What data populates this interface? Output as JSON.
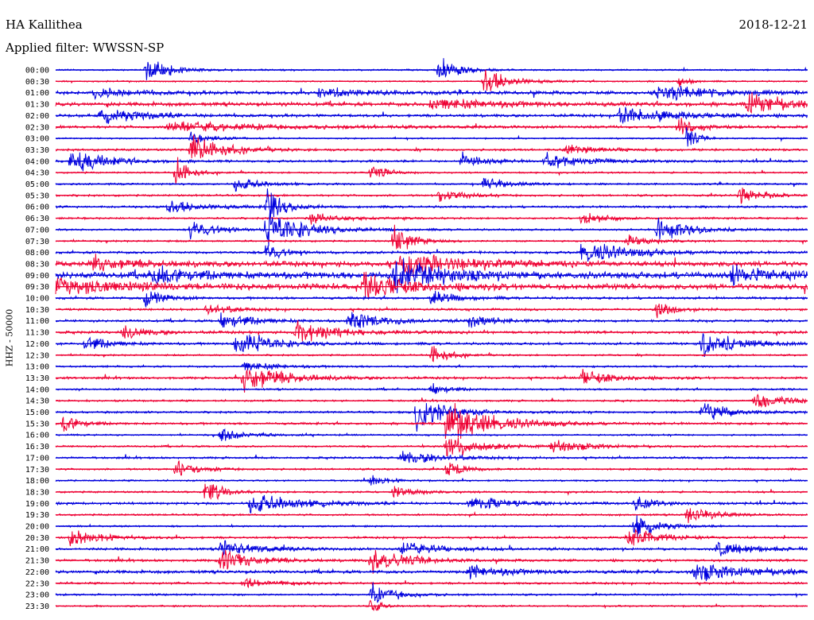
{
  "header": {
    "station": "HA Kallithea",
    "date": "2018-12-21",
    "filter_label": "Applied filter: WWSSN-SP"
  },
  "chart_data": {
    "type": "line",
    "title": "HA Kallithea",
    "subtitle": "Applied filter: WWSSN-SP",
    "date": "2018-12-21",
    "ylabel": "HHZ - 50000",
    "colors": [
      "#0000dd",
      "#ee0033"
    ],
    "grid": false,
    "rows": [
      {
        "label": "00:00",
        "noise": 0.8,
        "events": [
          {
            "pos": 0.12,
            "amp": 16,
            "dur": 0.03
          },
          {
            "pos": 0.51,
            "amp": 14,
            "dur": 0.025
          }
        ]
      },
      {
        "label": "00:30",
        "noise": 0.8,
        "events": [
          {
            "pos": 0.57,
            "amp": 18,
            "dur": 0.03
          },
          {
            "pos": 0.83,
            "amp": 10,
            "dur": 0.01
          }
        ]
      },
      {
        "label": "01:00",
        "noise": 1.8,
        "events": [
          {
            "pos": 0.05,
            "amp": 7,
            "dur": 0.05
          },
          {
            "pos": 0.35,
            "amp": 6,
            "dur": 0.06
          },
          {
            "pos": 0.8,
            "amp": 8,
            "dur": 0.08
          }
        ]
      },
      {
        "label": "01:30",
        "noise": 2.0,
        "events": [
          {
            "pos": 0.5,
            "amp": 7,
            "dur": 0.08
          },
          {
            "pos": 0.92,
            "amp": 16,
            "dur": 0.04
          }
        ]
      },
      {
        "label": "02:00",
        "noise": 1.5,
        "events": [
          {
            "pos": 0.06,
            "amp": 9,
            "dur": 0.06
          },
          {
            "pos": 0.75,
            "amp": 10,
            "dur": 0.07
          }
        ]
      },
      {
        "label": "02:30",
        "noise": 1.5,
        "events": [
          {
            "pos": 0.15,
            "amp": 6,
            "dur": 0.12
          },
          {
            "pos": 0.83,
            "amp": 12,
            "dur": 0.02
          }
        ]
      },
      {
        "label": "03:00",
        "noise": 0.8,
        "events": [
          {
            "pos": 0.18,
            "amp": 6,
            "dur": 0.03
          },
          {
            "pos": 0.84,
            "amp": 18,
            "dur": 0.01
          }
        ]
      },
      {
        "label": "03:30",
        "noise": 1.2,
        "events": [
          {
            "pos": 0.18,
            "amp": 17,
            "dur": 0.04
          },
          {
            "pos": 0.68,
            "amp": 5,
            "dur": 0.04
          }
        ]
      },
      {
        "label": "04:00",
        "noise": 1.2,
        "events": [
          {
            "pos": 0.02,
            "amp": 16,
            "dur": 0.04
          },
          {
            "pos": 0.54,
            "amp": 9,
            "dur": 0.03
          },
          {
            "pos": 0.65,
            "amp": 9,
            "dur": 0.05
          }
        ]
      },
      {
        "label": "04:30",
        "noise": 0.9,
        "events": [
          {
            "pos": 0.16,
            "amp": 20,
            "dur": 0.015
          },
          {
            "pos": 0.42,
            "amp": 10,
            "dur": 0.02
          }
        ]
      },
      {
        "label": "05:00",
        "noise": 1.0,
        "events": [
          {
            "pos": 0.24,
            "amp": 8,
            "dur": 0.03
          },
          {
            "pos": 0.57,
            "amp": 8,
            "dur": 0.03
          }
        ]
      },
      {
        "label": "05:30",
        "noise": 1.1,
        "events": [
          {
            "pos": 0.51,
            "amp": 7,
            "dur": 0.03
          },
          {
            "pos": 0.91,
            "amp": 9,
            "dur": 0.03
          }
        ]
      },
      {
        "label": "06:00",
        "noise": 1.2,
        "events": [
          {
            "pos": 0.15,
            "amp": 9,
            "dur": 0.04
          },
          {
            "pos": 0.28,
            "amp": 22,
            "dur": 0.02
          }
        ]
      },
      {
        "label": "06:30",
        "noise": 1.0,
        "events": [
          {
            "pos": 0.34,
            "amp": 6,
            "dur": 0.04
          },
          {
            "pos": 0.7,
            "amp": 8,
            "dur": 0.03
          }
        ]
      },
      {
        "label": "07:00",
        "noise": 1.0,
        "events": [
          {
            "pos": 0.28,
            "amp": 20,
            "dur": 0.05
          },
          {
            "pos": 0.18,
            "amp": 12,
            "dur": 0.03
          },
          {
            "pos": 0.8,
            "amp": 14,
            "dur": 0.04
          }
        ]
      },
      {
        "label": "07:30",
        "noise": 1.0,
        "events": [
          {
            "pos": 0.76,
            "amp": 8,
            "dur": 0.03
          },
          {
            "pos": 0.45,
            "amp": 22,
            "dur": 0.02
          }
        ]
      },
      {
        "label": "08:00",
        "noise": 1.3,
        "events": [
          {
            "pos": 0.7,
            "amp": 14,
            "dur": 0.06
          },
          {
            "pos": 0.28,
            "amp": 12,
            "dur": 0.02
          }
        ]
      },
      {
        "label": "08:30",
        "noise": 2.8,
        "events": [
          {
            "pos": 0.46,
            "amp": 14,
            "dur": 0.08
          },
          {
            "pos": 0.05,
            "amp": 8,
            "dur": 0.05
          }
        ]
      },
      {
        "label": "09:00",
        "noise": 3.5,
        "events": [
          {
            "pos": 0.45,
            "amp": 20,
            "dur": 0.06
          },
          {
            "pos": 0.13,
            "amp": 10,
            "dur": 0.05
          },
          {
            "pos": 0.9,
            "amp": 10,
            "dur": 0.05
          }
        ]
      },
      {
        "label": "09:30",
        "noise": 3.0,
        "events": [
          {
            "pos": 0.0,
            "amp": 10,
            "dur": 0.08
          },
          {
            "pos": 0.41,
            "amp": 16,
            "dur": 0.05
          }
        ]
      },
      {
        "label": "10:00",
        "noise": 1.3,
        "events": [
          {
            "pos": 0.12,
            "amp": 14,
            "dur": 0.02
          },
          {
            "pos": 0.5,
            "amp": 9,
            "dur": 0.03
          }
        ]
      },
      {
        "label": "10:30",
        "noise": 1.2,
        "events": [
          {
            "pos": 0.2,
            "amp": 7,
            "dur": 0.03
          },
          {
            "pos": 0.8,
            "amp": 10,
            "dur": 0.02
          }
        ]
      },
      {
        "label": "11:00",
        "noise": 1.3,
        "events": [
          {
            "pos": 0.22,
            "amp": 10,
            "dur": 0.04
          },
          {
            "pos": 0.39,
            "amp": 12,
            "dur": 0.04
          },
          {
            "pos": 0.55,
            "amp": 8,
            "dur": 0.03
          }
        ]
      },
      {
        "label": "11:30",
        "noise": 1.4,
        "events": [
          {
            "pos": 0.32,
            "amp": 13,
            "dur": 0.05
          },
          {
            "pos": 0.09,
            "amp": 8,
            "dur": 0.03
          }
        ]
      },
      {
        "label": "12:00",
        "noise": 1.3,
        "events": [
          {
            "pos": 0.24,
            "amp": 17,
            "dur": 0.04
          },
          {
            "pos": 0.04,
            "amp": 9,
            "dur": 0.03
          },
          {
            "pos": 0.86,
            "amp": 18,
            "dur": 0.04
          }
        ]
      },
      {
        "label": "12:30",
        "noise": 0.9,
        "events": [
          {
            "pos": 0.5,
            "amp": 12,
            "dur": 0.02
          }
        ]
      },
      {
        "label": "13:00",
        "noise": 1.0,
        "events": [
          {
            "pos": 0.25,
            "amp": 6,
            "dur": 0.04
          }
        ]
      },
      {
        "label": "13:30",
        "noise": 1.2,
        "events": [
          {
            "pos": 0.25,
            "amp": 18,
            "dur": 0.05
          },
          {
            "pos": 0.7,
            "amp": 9,
            "dur": 0.04
          }
        ]
      },
      {
        "label": "14:00",
        "noise": 1.0,
        "events": [
          {
            "pos": 0.5,
            "amp": 8,
            "dur": 0.02
          }
        ]
      },
      {
        "label": "14:30",
        "noise": 1.0,
        "events": [
          {
            "pos": 0.93,
            "amp": 10,
            "dur": 0.04
          }
        ]
      },
      {
        "label": "15:00",
        "noise": 1.1,
        "events": [
          {
            "pos": 0.48,
            "amp": 22,
            "dur": 0.04
          },
          {
            "pos": 0.86,
            "amp": 10,
            "dur": 0.04
          }
        ]
      },
      {
        "label": "15:30",
        "noise": 1.2,
        "events": [
          {
            "pos": 0.52,
            "amp": 25,
            "dur": 0.06
          },
          {
            "pos": 0.01,
            "amp": 12,
            "dur": 0.02
          }
        ]
      },
      {
        "label": "16:00",
        "noise": 0.9,
        "events": [
          {
            "pos": 0.22,
            "amp": 8,
            "dur": 0.03
          }
        ]
      },
      {
        "label": "16:30",
        "noise": 1.0,
        "events": [
          {
            "pos": 0.52,
            "amp": 14,
            "dur": 0.04
          },
          {
            "pos": 0.66,
            "amp": 7,
            "dur": 0.05
          }
        ]
      },
      {
        "label": "17:00",
        "noise": 1.1,
        "events": [
          {
            "pos": 0.46,
            "amp": 8,
            "dur": 0.05
          }
        ]
      },
      {
        "label": "17:30",
        "noise": 1.0,
        "events": [
          {
            "pos": 0.16,
            "amp": 9,
            "dur": 0.03
          },
          {
            "pos": 0.52,
            "amp": 12,
            "dur": 0.02
          }
        ]
      },
      {
        "label": "18:00",
        "noise": 0.9,
        "events": [
          {
            "pos": 0.42,
            "amp": 7,
            "dur": 0.02
          }
        ]
      },
      {
        "label": "18:30",
        "noise": 1.0,
        "events": [
          {
            "pos": 0.2,
            "amp": 14,
            "dur": 0.02
          },
          {
            "pos": 0.45,
            "amp": 8,
            "dur": 0.03
          }
        ]
      },
      {
        "label": "19:00",
        "noise": 1.3,
        "events": [
          {
            "pos": 0.26,
            "amp": 12,
            "dur": 0.06
          },
          {
            "pos": 0.55,
            "amp": 8,
            "dur": 0.05
          },
          {
            "pos": 0.77,
            "amp": 10,
            "dur": 0.02
          }
        ]
      },
      {
        "label": "19:30",
        "noise": 1.0,
        "events": [
          {
            "pos": 0.84,
            "amp": 12,
            "dur": 0.03
          }
        ]
      },
      {
        "label": "20:00",
        "noise": 0.9,
        "events": [
          {
            "pos": 0.77,
            "amp": 14,
            "dur": 0.03
          }
        ]
      },
      {
        "label": "20:30",
        "noise": 1.1,
        "events": [
          {
            "pos": 0.02,
            "amp": 10,
            "dur": 0.04
          },
          {
            "pos": 0.76,
            "amp": 12,
            "dur": 0.04
          }
        ]
      },
      {
        "label": "21:00",
        "noise": 1.3,
        "events": [
          {
            "pos": 0.22,
            "amp": 9,
            "dur": 0.05
          },
          {
            "pos": 0.46,
            "amp": 8,
            "dur": 0.05
          },
          {
            "pos": 0.88,
            "amp": 9,
            "dur": 0.05
          }
        ]
      },
      {
        "label": "21:30",
        "noise": 1.3,
        "events": [
          {
            "pos": 0.22,
            "amp": 14,
            "dur": 0.04
          },
          {
            "pos": 0.42,
            "amp": 16,
            "dur": 0.04
          }
        ]
      },
      {
        "label": "22:00",
        "noise": 1.6,
        "events": [
          {
            "pos": 0.55,
            "amp": 8,
            "dur": 0.05
          },
          {
            "pos": 0.85,
            "amp": 10,
            "dur": 0.08
          }
        ]
      },
      {
        "label": "22:30",
        "noise": 1.1,
        "events": [
          {
            "pos": 0.25,
            "amp": 6,
            "dur": 0.04
          }
        ]
      },
      {
        "label": "23:00",
        "noise": 1.0,
        "events": [
          {
            "pos": 0.42,
            "amp": 14,
            "dur": 0.03
          }
        ]
      },
      {
        "label": "23:30",
        "noise": 0.9,
        "events": [
          {
            "pos": 0.42,
            "amp": 12,
            "dur": 0.01
          }
        ]
      }
    ]
  }
}
